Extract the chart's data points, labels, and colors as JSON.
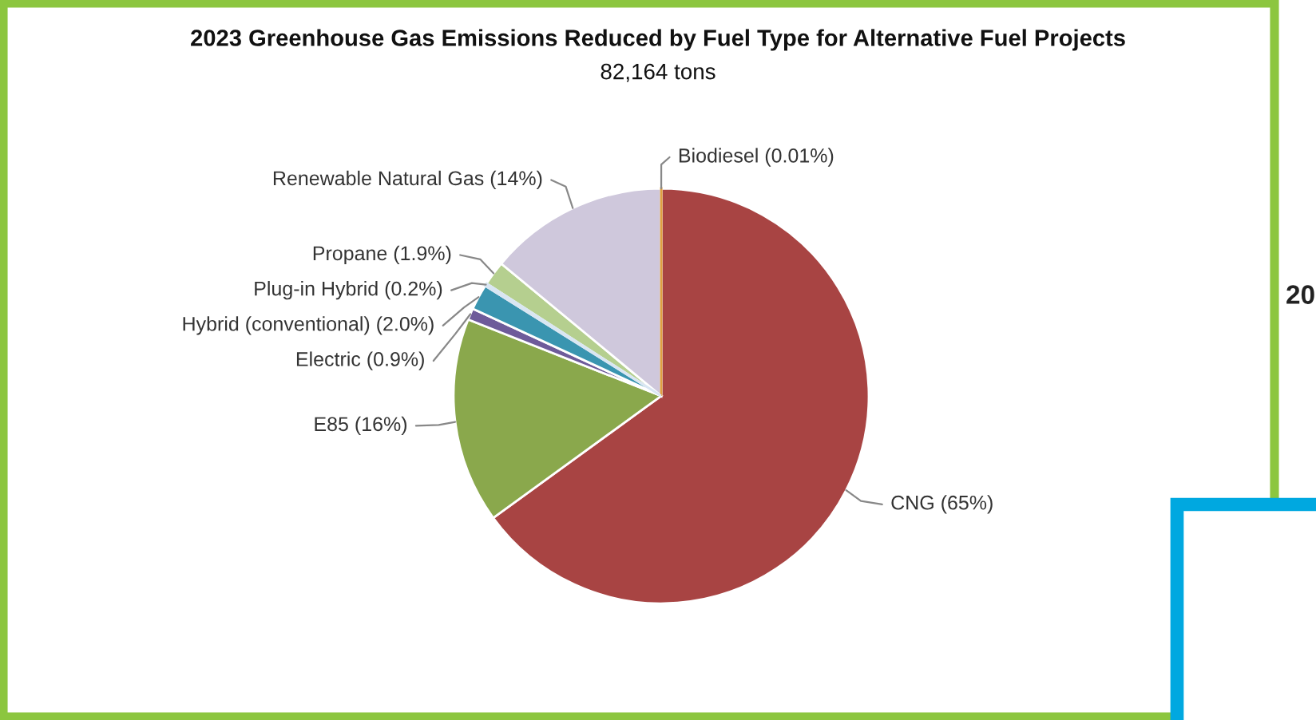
{
  "chart_data": {
    "type": "pie",
    "title": "2023 Greenhouse Gas Emissions Reduced by Fuel Type for Alternative Fuel Projects",
    "subtitle": "82,164 tons",
    "categories": [
      "Biodiesel (0.01%)",
      "CNG (65%)",
      "E85 (16%)",
      "Electric (0.9%)",
      "Hybrid (conventional) (2.0%)",
      "Plug-in Hybrid (0.2%)",
      "Propane (1.9%)",
      "Renewable Natural Gas (14%)"
    ],
    "values": [
      0.01,
      65,
      16,
      0.9,
      2.0,
      0.2,
      1.9,
      14
    ],
    "colors": [
      "#e0a040",
      "#a84443",
      "#8aa84c",
      "#6e5b9a",
      "#3a95b0",
      "#d9e6f2",
      "#b5cf8f",
      "#cfc8dc"
    ],
    "annotations": [
      "20"
    ],
    "legend": false
  }
}
